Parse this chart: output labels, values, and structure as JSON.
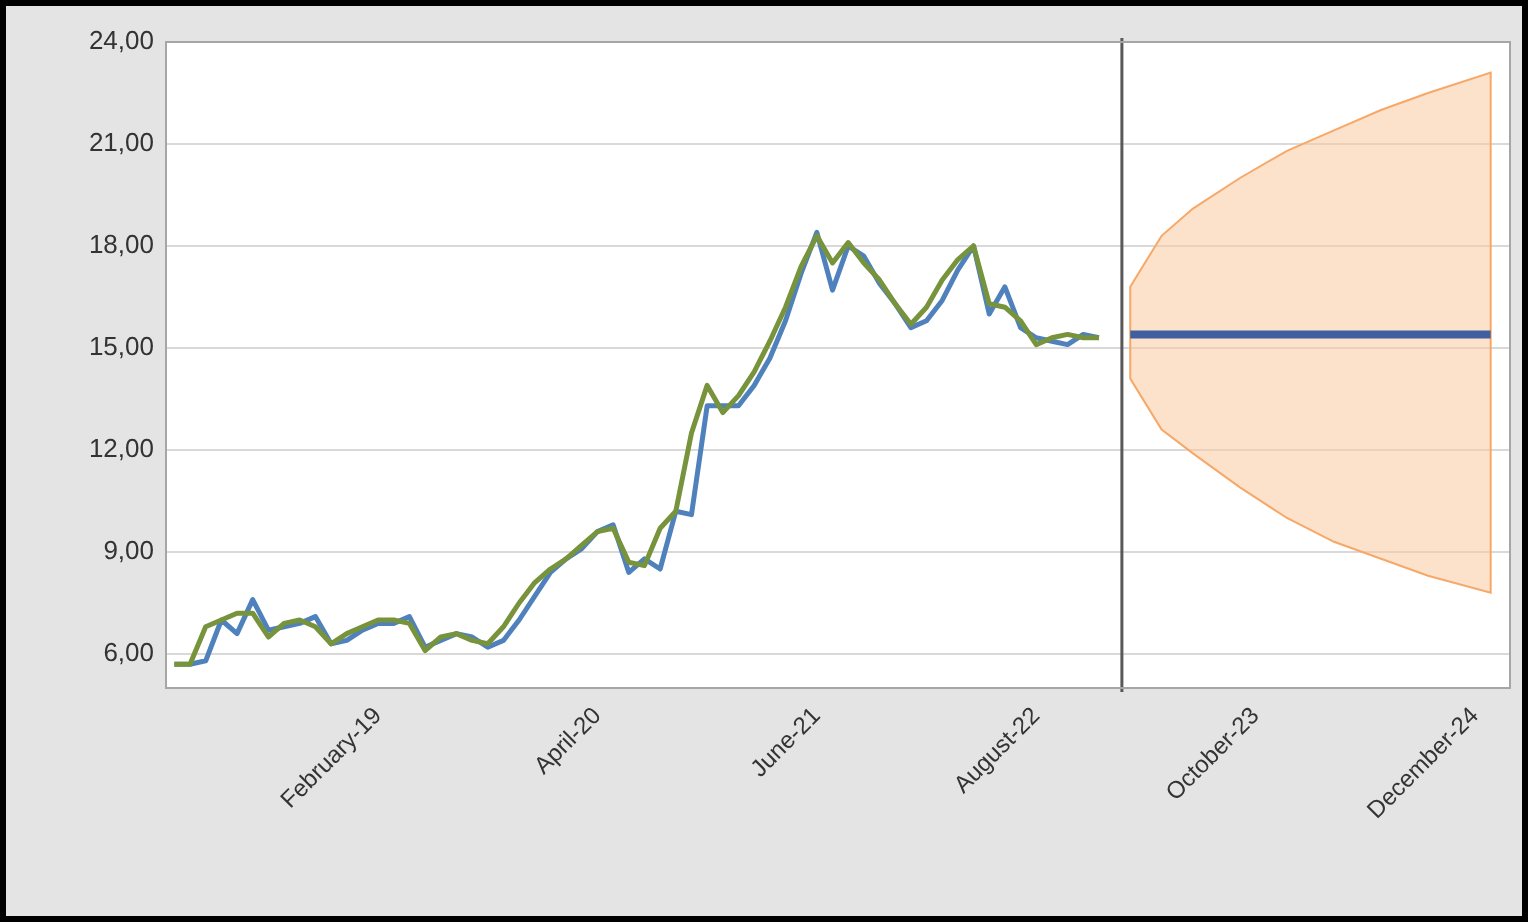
{
  "chart_data": {
    "type": "line",
    "x": [
      "2018-01",
      "2018-02",
      "2018-03",
      "2018-04",
      "2018-05",
      "2018-06",
      "2018-07",
      "2018-08",
      "2018-09",
      "2018-10",
      "2018-11",
      "2018-12",
      "2019-01",
      "2019-02",
      "2019-03",
      "2019-04",
      "2019-05",
      "2019-06",
      "2019-07",
      "2019-08",
      "2019-09",
      "2019-10",
      "2019-11",
      "2019-12",
      "2020-01",
      "2020-02",
      "2020-03",
      "2020-04",
      "2020-05",
      "2020-06",
      "2020-07",
      "2020-08",
      "2020-09",
      "2020-10",
      "2020-11",
      "2020-12",
      "2021-01",
      "2021-02",
      "2021-03",
      "2021-04",
      "2021-05",
      "2021-06",
      "2021-07",
      "2021-08",
      "2021-09",
      "2021-10",
      "2021-11",
      "2021-12",
      "2022-01",
      "2022-02",
      "2022-03",
      "2022-04",
      "2022-05",
      "2022-06",
      "2022-07",
      "2022-08",
      "2022-09",
      "2022-10",
      "2022-11",
      "2022-12"
    ],
    "series": [
      {
        "color": "#77933c",
        "values": [
          5.7,
          5.7,
          6.8,
          7.0,
          7.2,
          7.2,
          6.5,
          6.9,
          7.0,
          6.8,
          6.3,
          6.6,
          6.8,
          7.0,
          7.0,
          6.9,
          6.1,
          6.5,
          6.6,
          6.4,
          6.3,
          6.8,
          7.5,
          8.1,
          8.5,
          8.8,
          9.2,
          9.6,
          9.7,
          8.7,
          8.6,
          9.7,
          10.2,
          12.5,
          13.9,
          13.1,
          13.6,
          14.3,
          15.2,
          16.2,
          17.4,
          18.3,
          17.5,
          18.1,
          17.5,
          17.0,
          16.3,
          15.7,
          16.2,
          17.0,
          17.6,
          18.0,
          16.3,
          16.2,
          15.8,
          15.1,
          15.3,
          15.4,
          15.3,
          15.3
        ]
      },
      {
        "color": "#4f81bd",
        "values": [
          5.7,
          5.7,
          5.8,
          7.0,
          6.6,
          7.6,
          6.7,
          6.8,
          6.9,
          7.1,
          6.3,
          6.4,
          6.7,
          6.9,
          6.9,
          7.1,
          6.2,
          6.4,
          6.6,
          6.5,
          6.2,
          6.4,
          7.0,
          7.7,
          8.4,
          8.8,
          9.1,
          9.6,
          9.8,
          8.4,
          8.8,
          8.5,
          10.2,
          10.1,
          13.3,
          13.3,
          13.3,
          13.9,
          14.7,
          15.8,
          17.2,
          18.4,
          16.7,
          18.0,
          17.7,
          16.9,
          16.3,
          15.6,
          15.8,
          16.4,
          17.3,
          18.0,
          16.0,
          16.8,
          15.6,
          15.3,
          15.2,
          15.1,
          15.4,
          15.3
        ]
      },
      {
        "color": "#3f5f9f",
        "x": [
          "2023-02",
          "2023-04",
          "2023-06",
          "2023-09",
          "2023-12",
          "2024-03",
          "2024-06",
          "2024-09",
          "2025-01"
        ],
        "values": [
          15.4,
          15.4,
          15.4,
          15.4,
          15.4,
          15.4,
          15.4,
          15.4,
          15.4
        ],
        "lower": [
          14.1,
          12.6,
          11.9,
          10.9,
          10.0,
          9.3,
          8.8,
          8.3,
          7.8
        ],
        "upper": [
          16.8,
          18.3,
          19.1,
          20.0,
          20.8,
          21.4,
          22.0,
          22.5,
          23.1
        ]
      }
    ],
    "xlim": [
      "2017-12-15",
      "2025-02-08"
    ],
    "xticks": [
      {
        "value": "2019-02",
        "label": "February-19"
      },
      {
        "value": "2020-04",
        "label": "April-20"
      },
      {
        "value": "2021-06",
        "label": "June-21"
      },
      {
        "value": "2022-08",
        "label": "August-22"
      },
      {
        "value": "2023-10",
        "label": "October-23"
      },
      {
        "value": "2024-12",
        "label": "December-24"
      }
    ],
    "ylim": [
      5,
      24
    ],
    "yticks": [
      {
        "value": 6,
        "label": "6,00"
      },
      {
        "value": 9,
        "label": "9,00"
      },
      {
        "value": 12,
        "label": "12,00"
      },
      {
        "value": 15,
        "label": "15,00"
      },
      {
        "value": 18,
        "label": "18,00"
      },
      {
        "value": 21,
        "label": "21,00"
      },
      {
        "value": 24,
        "label": "24,00"
      }
    ],
    "ref_lines": [
      {
        "axis": "x",
        "value": "2023-01-15",
        "color": "#595959"
      }
    ],
    "grid": "y",
    "legend": false,
    "marker": "none",
    "line_style": "solid"
  }
}
